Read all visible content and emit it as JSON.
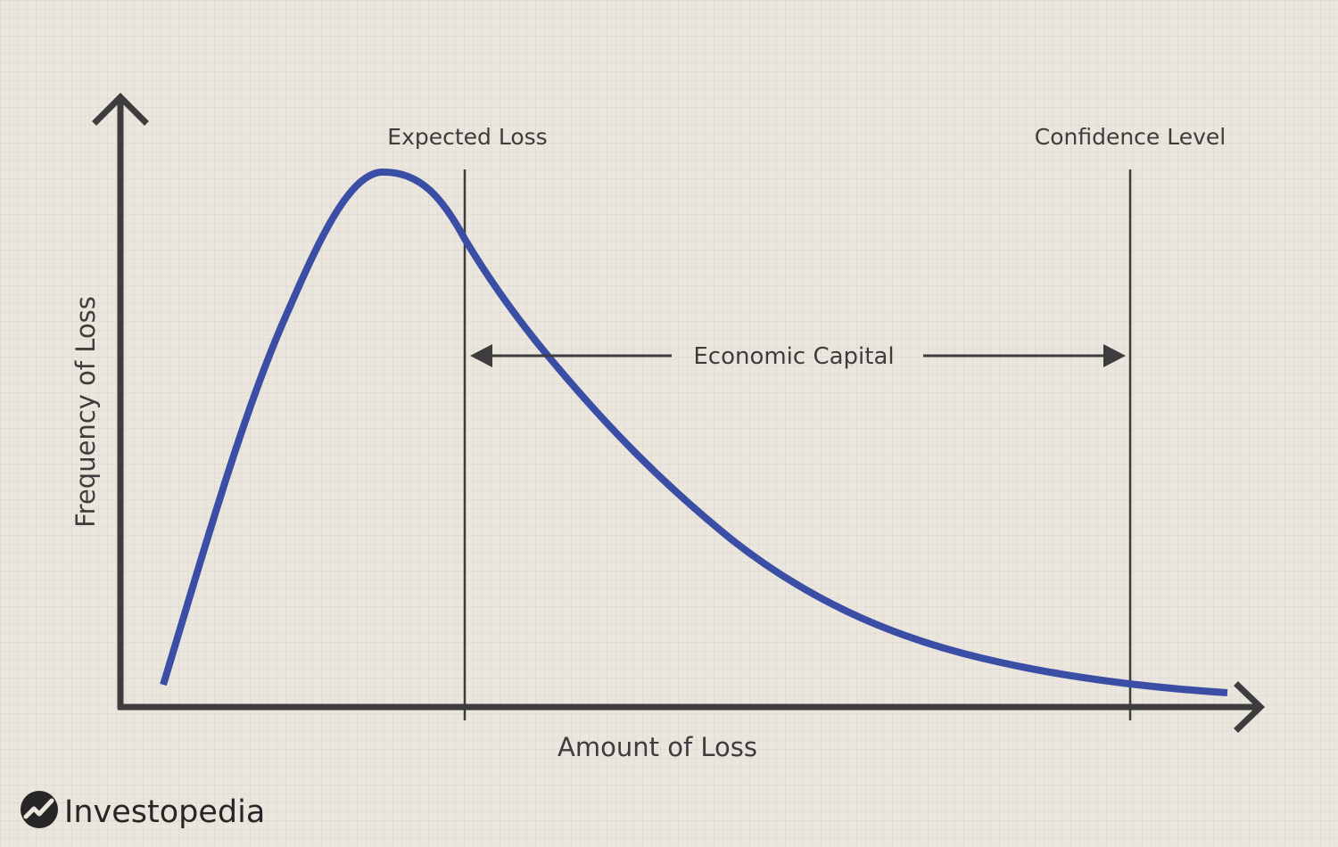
{
  "diagram": {
    "y_axis_label": "Frequency of Loss",
    "x_axis_label": "Amount of Loss",
    "expected_loss_label": "Expected Loss",
    "confidence_level_label": "Confidence Level",
    "economic_capital_label": "Economic Capital",
    "curve_color": "#3b4ea6",
    "axis_color": "#3d3d3d"
  },
  "brand": {
    "logo_text": "Investopedia"
  }
}
